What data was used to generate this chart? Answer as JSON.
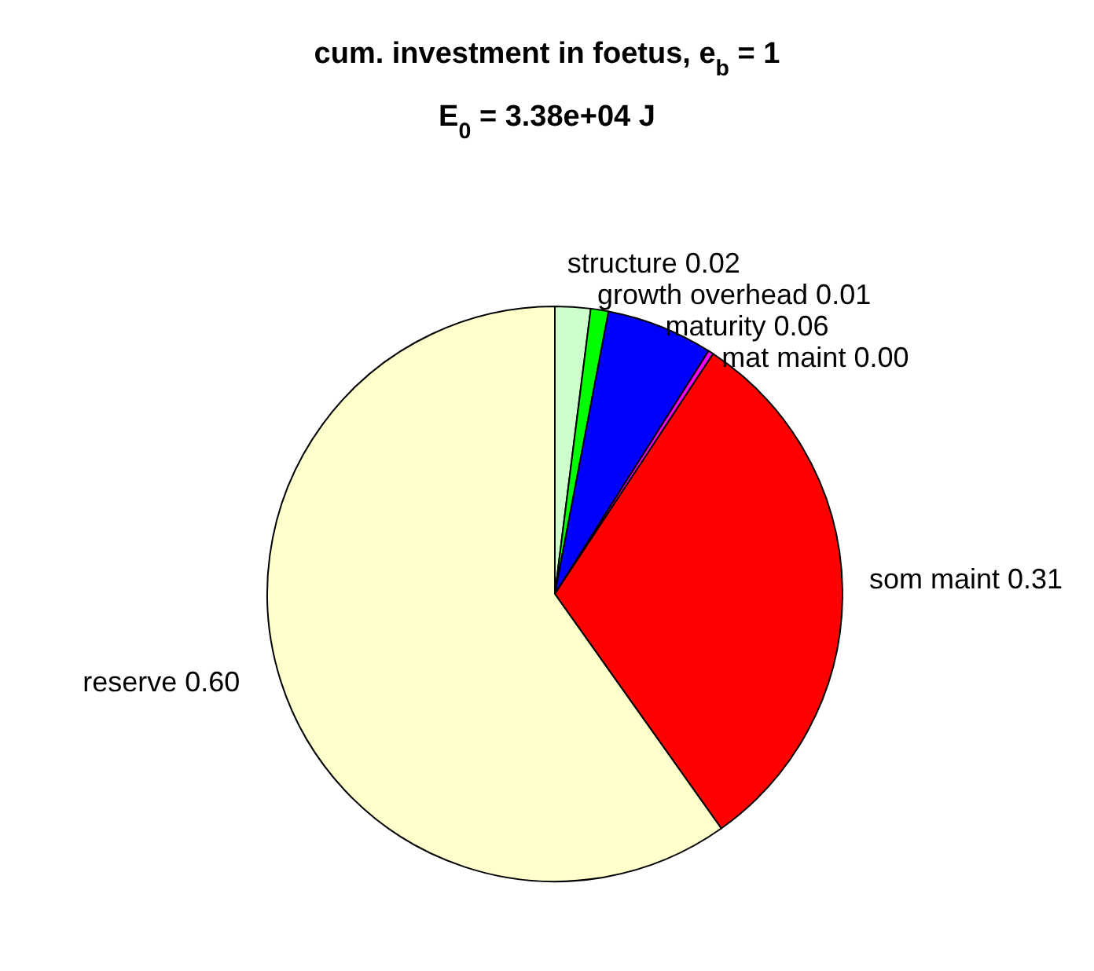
{
  "chart_data": {
    "type": "pie",
    "title": "cum. investment in foetus, e$_{b}$ = 1",
    "subtitle": "E$_{0}$ = 3.38e+04 J",
    "categories": [
      "structure",
      "growth overhead",
      "maturity",
      "mat maint",
      "som maint",
      "reserve"
    ],
    "values": [
      0.02,
      0.01,
      0.06,
      0.003,
      0.31,
      0.6
    ],
    "value_labels": [
      "0.02",
      "0.01",
      "0.06",
      "0.00",
      "0.31",
      "0.60"
    ],
    "colors": [
      "#ccffcc",
      "#00ff00",
      "#0000ff",
      "#ff00ff",
      "#ff0000",
      "#ffffcc"
    ],
    "legend": false
  }
}
